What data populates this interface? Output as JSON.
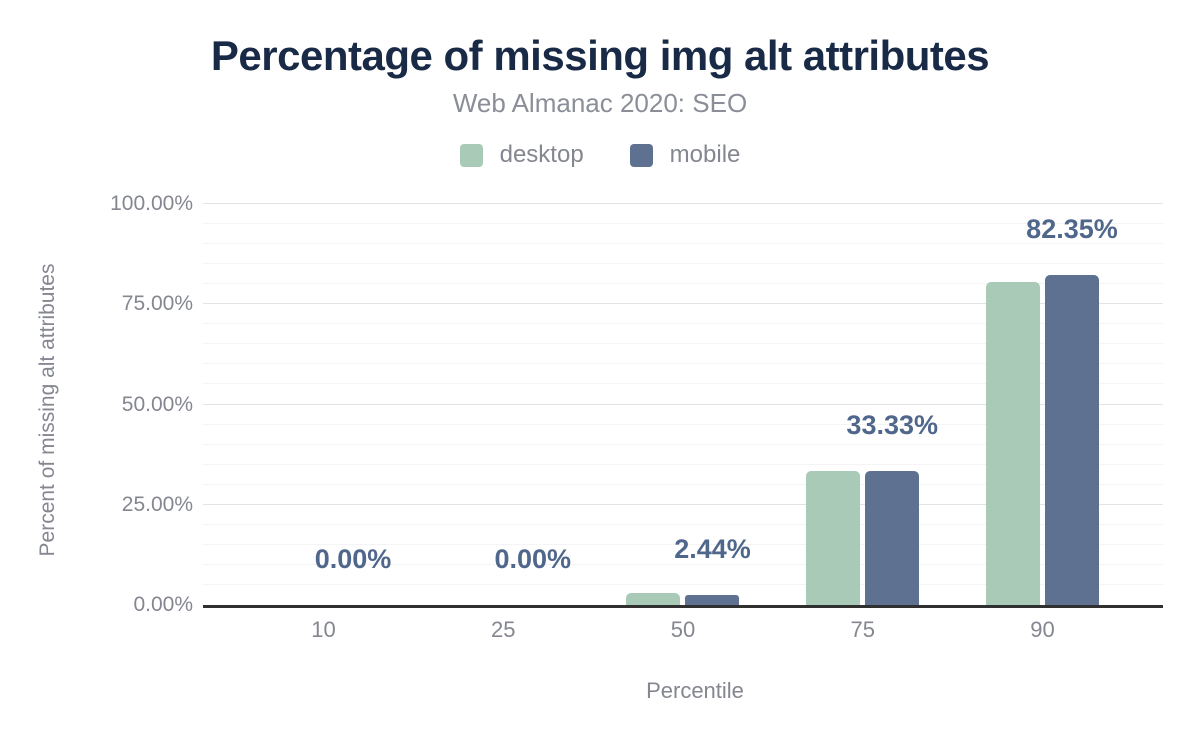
{
  "chart_data": {
    "type": "bar",
    "title": "Percentage of missing img alt attributes",
    "subtitle": "Web Almanac 2020: SEO",
    "xlabel": "Percentile",
    "ylabel": "Percent of missing alt attributes",
    "categories": [
      "10",
      "25",
      "50",
      "75",
      "90"
    ],
    "series": [
      {
        "name": "desktop",
        "color": "#a8cab7",
        "values": [
          0,
          0,
          2.99,
          33.33,
          80.49
        ]
      },
      {
        "name": "mobile",
        "color": "#5e7190",
        "values": [
          0,
          0,
          2.44,
          33.33,
          82.35
        ]
      }
    ],
    "bar_value_labels": [
      "0.00%",
      "0.00%",
      "2.44%",
      "33.33%",
      "82.35%"
    ],
    "y_ticks": [
      "0.00%",
      "25.00%",
      "50.00%",
      "75.00%",
      "100.00%"
    ],
    "ylim": [
      0,
      100
    ],
    "grid": {
      "minor_step": 5,
      "major_step": 25
    },
    "legend_position": "top",
    "legend": [
      "desktop",
      "mobile"
    ],
    "colors": {
      "title": "#192a47",
      "subtitle": "#8a8e97",
      "axis_text": "#84878f",
      "value_label": "#50678c",
      "axis_line": "#303030",
      "grid_major": "#e2e3e5",
      "grid_minor": "#f4f4f5"
    }
  }
}
